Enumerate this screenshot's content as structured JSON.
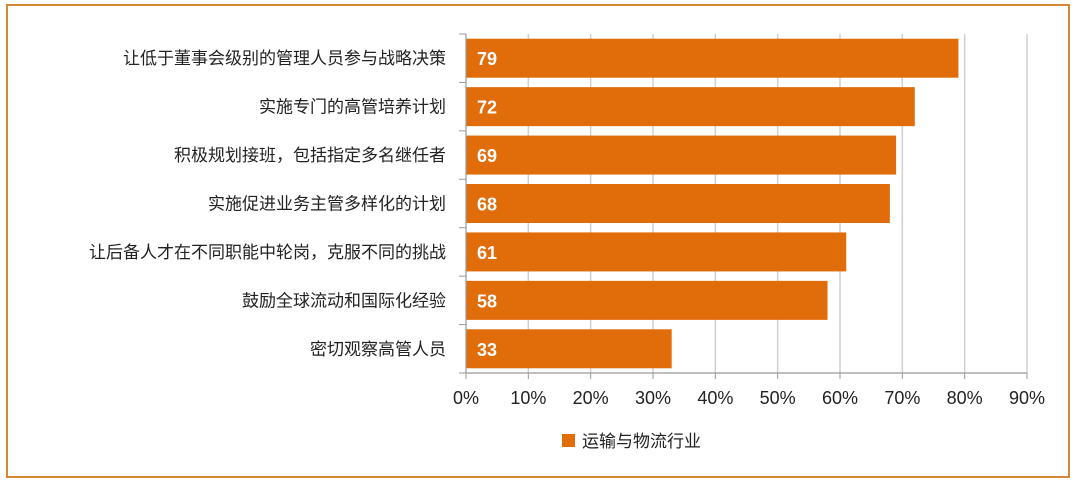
{
  "chart_data": {
    "type": "bar",
    "orientation": "horizontal",
    "categories": [
      "让低于董事会级别的管理人员参与战略决策",
      "实施专门的高管培养计划",
      "积极规划接班，包括指定多名继任者",
      "实施促进业务主管多样化的计划",
      "让后备人才在不同职能中轮岗，克服不同的挑战",
      "鼓励全球流动和国际化经验",
      "密切观察高管人员"
    ],
    "series": [
      {
        "name": "运输与物流行业",
        "values": [
          79,
          72,
          69,
          68,
          61,
          58,
          33
        ],
        "color": "#e06c0a"
      }
    ],
    "data_labels": [
      "79",
      "72",
      "69",
      "68",
      "61",
      "58",
      "33"
    ],
    "xlim": [
      0,
      90
    ],
    "xticks": [
      "0%",
      "10%",
      "20%",
      "30%",
      "40%",
      "50%",
      "60%",
      "70%",
      "80%",
      "90%"
    ],
    "grid": true,
    "legend_position": "bottom-center"
  }
}
